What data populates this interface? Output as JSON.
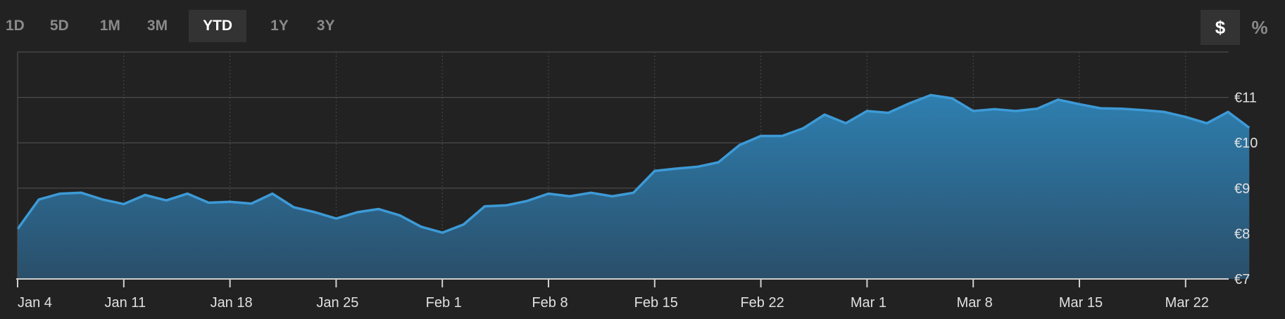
{
  "range_selector": {
    "options": [
      "1D",
      "5D",
      "1M",
      "3M",
      "YTD",
      "1Y",
      "3Y"
    ],
    "selected": "YTD"
  },
  "unit_toggle": {
    "options": [
      "$",
      "%"
    ],
    "selected": "$"
  },
  "chart_data": {
    "type": "area",
    "title": "",
    "xlabel": "",
    "ylabel": "",
    "y_ticks": [
      "€7",
      "€8",
      "€9",
      "€10",
      "€11"
    ],
    "ylim": [
      7,
      12
    ],
    "x_ticks": [
      "Jan 4",
      "Jan 11",
      "Jan 18",
      "Jan 25",
      "Feb 1",
      "Feb 8",
      "Feb 15",
      "Feb 22",
      "Mar 1",
      "Mar 8",
      "Mar 15",
      "Mar 22"
    ],
    "grid": true,
    "colors": {
      "line": "#3d9ad6",
      "fill_top": "#2e7fb0",
      "fill_bottom": "#2a4f6a",
      "grid": "#555555",
      "background": "#222222"
    },
    "series": [
      {
        "x": [
          "Jan 4",
          "Jan 5",
          "Jan 6",
          "Jan 7",
          "Jan 8",
          "Jan 11",
          "Jan 12",
          "Jan 13",
          "Jan 14",
          "Jan 15",
          "Jan 18",
          "Jan 19",
          "Jan 20",
          "Jan 21",
          "Jan 22",
          "Jan 25",
          "Jan 26",
          "Jan 27",
          "Jan 28",
          "Jan 29",
          "Feb 1",
          "Feb 2",
          "Feb 3",
          "Feb 4",
          "Feb 5",
          "Feb 8",
          "Feb 9",
          "Feb 10",
          "Feb 11",
          "Feb 12",
          "Feb 15",
          "Feb 16",
          "Feb 17",
          "Feb 18",
          "Feb 19",
          "Feb 22",
          "Feb 23",
          "Feb 24",
          "Feb 25",
          "Feb 26",
          "Mar 1",
          "Mar 2",
          "Mar 3",
          "Mar 4",
          "Mar 5",
          "Mar 8",
          "Mar 9",
          "Mar 10",
          "Mar 11",
          "Mar 12",
          "Mar 15",
          "Mar 16",
          "Mar 17",
          "Mar 18",
          "Mar 19",
          "Mar 22",
          "Mar 23",
          "Mar 24",
          "Mar 25"
        ],
        "values": [
          8.1,
          8.75,
          8.88,
          8.9,
          8.75,
          8.65,
          8.85,
          8.73,
          8.88,
          8.68,
          8.7,
          8.66,
          8.88,
          8.58,
          8.47,
          8.33,
          8.47,
          8.54,
          8.4,
          8.15,
          8.02,
          8.2,
          8.6,
          8.62,
          8.72,
          8.88,
          8.82,
          8.9,
          8.82,
          8.9,
          9.38,
          9.43,
          9.47,
          9.57,
          9.95,
          10.15,
          10.15,
          10.32,
          10.62,
          10.43,
          10.7,
          10.66,
          10.87,
          11.05,
          10.98,
          10.7,
          10.74,
          10.7,
          10.75,
          10.95,
          10.85,
          10.76,
          10.75,
          10.72,
          10.68,
          10.57,
          10.43,
          10.68,
          10.33
        ]
      }
    ]
  }
}
